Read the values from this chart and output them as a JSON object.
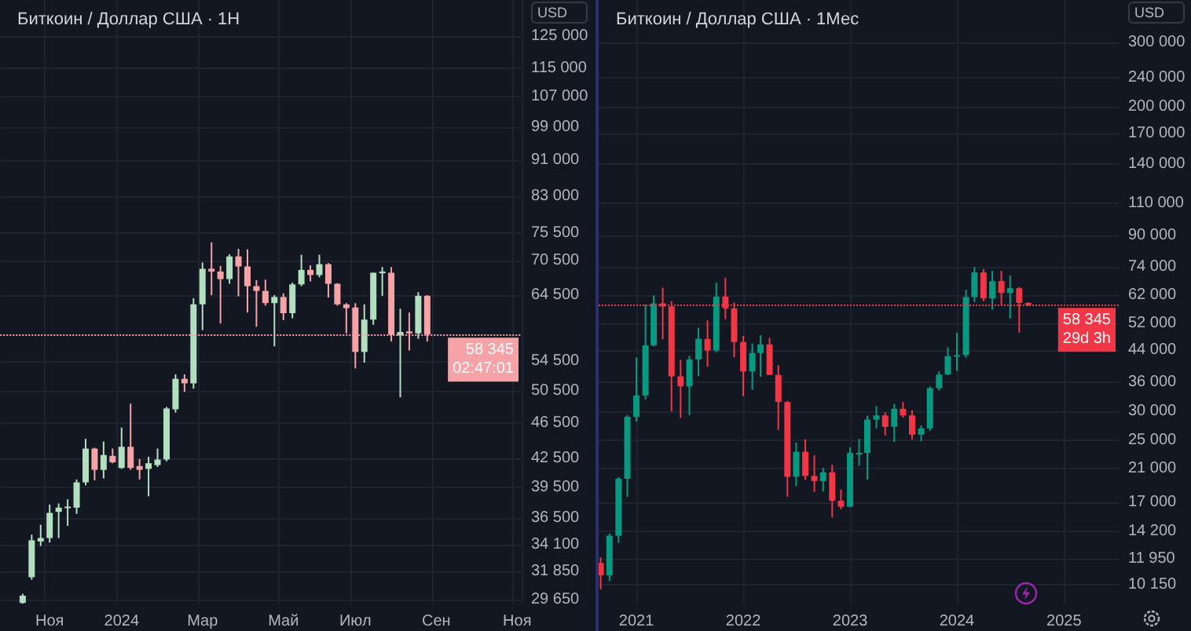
{
  "chart_data": [
    {
      "type": "candlestick",
      "title": "Биткоин / Доллар США · 1Н",
      "log": true,
      "grid": true,
      "annotations": [
        "USD"
      ],
      "categories": [
        null,
        null,
        null,
        null,
        null,
        "Ноя",
        null,
        null,
        null,
        null,
        null,
        null,
        null,
        "2024",
        null,
        null,
        null,
        null,
        null,
        null,
        null,
        null,
        "Мар",
        null,
        null,
        null,
        null,
        null,
        null,
        null,
        null,
        "Май",
        null,
        null,
        null,
        null,
        null,
        null,
        null,
        "Июл",
        null,
        null,
        null,
        null,
        null,
        null,
        null,
        null,
        "Сен",
        null,
        null,
        null,
        null,
        null,
        null,
        null,
        null,
        "Ноя"
      ],
      "ohlc": [
        null,
        null,
        [
          29400,
          30100,
          29350,
          29950
        ],
        [
          31400,
          35000,
          31200,
          34500
        ],
        [
          34400,
          35900,
          34000,
          34700
        ],
        [
          34700,
          37800,
          34300,
          37000
        ],
        [
          37100,
          37900,
          34700,
          37500
        ],
        [
          37450,
          38300,
          35800,
          37600
        ],
        [
          37500,
          40300,
          36900,
          40000
        ],
        [
          40000,
          44700,
          39700,
          43600
        ],
        [
          43600,
          43700,
          40200,
          41300
        ],
        [
          41300,
          44400,
          40400,
          42900
        ],
        [
          42800,
          43600,
          42000,
          42100
        ],
        [
          41500,
          46000,
          41400,
          43800
        ],
        [
          43800,
          48900,
          41300,
          41500
        ],
        [
          41700,
          42450,
          40300,
          41300
        ],
        [
          41400,
          42700,
          38600,
          42000
        ],
        [
          41800,
          43600,
          41600,
          42400
        ],
        [
          42400,
          48500,
          42200,
          48300
        ],
        [
          48200,
          52700,
          47800,
          52100
        ],
        [
          52100,
          52700,
          50400,
          51500
        ],
        [
          51500,
          64000,
          50800,
          63000
        ],
        [
          63000,
          70100,
          59000,
          69000
        ],
        [
          69000,
          73800,
          64500,
          68500
        ],
        [
          68500,
          69500,
          60000,
          67200
        ],
        [
          67200,
          71600,
          66400,
          71200
        ],
        [
          71200,
          72600,
          64300,
          69400
        ],
        [
          69400,
          72500,
          61700,
          66000
        ],
        [
          66000,
          67000,
          59500,
          65200
        ],
        [
          65200,
          67100,
          62800,
          63200
        ],
        [
          63200,
          64500,
          56600,
          64200
        ],
        [
          64200,
          64800,
          60500,
          61600
        ],
        [
          61600,
          66600,
          60800,
          66300
        ],
        [
          66300,
          71500,
          66000,
          68800
        ],
        [
          68800,
          69600,
          66800,
          67900
        ],
        [
          67900,
          71500,
          67500,
          69800
        ],
        [
          69800,
          70000,
          64100,
          66400
        ],
        [
          66400,
          66500,
          62800,
          63000
        ],
        [
          63000,
          63200,
          58500,
          62400
        ],
        [
          62500,
          63200,
          53500,
          55800
        ],
        [
          55800,
          63000,
          54300,
          60600
        ],
        [
          60600,
          68300,
          59800,
          68300
        ],
        [
          68200,
          69300,
          64400,
          68500
        ],
        [
          68300,
          69300,
          57300,
          58300
        ],
        [
          58200,
          62300,
          49700,
          58700
        ],
        [
          58800,
          61700,
          56000,
          58500
        ],
        [
          58500,
          65000,
          57700,
          64400
        ],
        [
          64400,
          64500,
          57300,
          58345
        ],
        null,
        null,
        null,
        null,
        null,
        null,
        null,
        null,
        null,
        null
      ],
      "colors": [
        null,
        null,
        "#b2dfbf",
        "#b2dfbf",
        "#b2dfbf",
        "#b2dfbf",
        "#b2dfbf",
        "#b2dfbf",
        "#b2dfbf",
        "#b2dfbf",
        "#f5a3a7",
        "#b2dfbf",
        "#f5a3a7",
        "#b2dfbf",
        "#f5a3a7",
        "#f5a3a7",
        "#b2dfbf",
        "#b2dfbf",
        "#b2dfbf",
        "#b2dfbf",
        "#f5a3a7",
        "#b2dfbf",
        "#b2dfbf",
        "#f5a3a7",
        "#f5a3a7",
        "#b2dfbf",
        "#f5a3a7",
        "#f5a3a7",
        "#f5a3a7",
        "#f5a3a7",
        "#b2dfbf",
        "#f5a3a7",
        "#b2dfbf",
        "#b2dfbf",
        "#f5a3a7",
        "#b2dfbf",
        "#f5a3a7",
        "#f5a3a7",
        "#f5a3a7",
        "#f5a3a7",
        "#b2dfbf",
        "#b2dfbf",
        "#b2dfbf",
        "#f5a3a7",
        "#b2dfbf",
        "#f5a3a7",
        "#b2dfbf",
        "#f5a3a7",
        null,
        null,
        null,
        null,
        null,
        null,
        null,
        null,
        null,
        null
      ],
      "ylim": [
        29300,
        137000
      ],
      "yticks": [
        {
          "value": 125000,
          "label": "125 000"
        },
        {
          "value": 115000,
          "label": "115 000"
        },
        {
          "value": 107000,
          "label": "107 000"
        },
        {
          "value": 99000,
          "label": "99 000"
        },
        {
          "value": 91000,
          "label": "91 000"
        },
        {
          "value": 83000,
          "label": "83 000"
        },
        {
          "value": 75500,
          "label": "75 500"
        },
        {
          "value": 70500,
          "label": "70 500"
        },
        {
          "value": 64500,
          "label": "64 500"
        },
        {
          "value": 54500,
          "label": "54 500"
        },
        {
          "value": 50500,
          "label": "50 500"
        },
        {
          "value": 46500,
          "label": "46 500"
        },
        {
          "value": 42500,
          "label": "42 500"
        },
        {
          "value": 39500,
          "label": "39 500"
        },
        {
          "value": 36500,
          "label": "36 500"
        },
        {
          "value": 34100,
          "label": "34 100"
        },
        {
          "value": 31850,
          "label": "31 850"
        },
        {
          "value": 29650,
          "label": "29 650"
        }
      ],
      "ref_lines": [
        {
          "axis": "y",
          "value": 58345,
          "label": "58 345\n02:47:01",
          "color": "#f5a3a7",
          "line_style": "dotted"
        }
      ]
    },
    {
      "type": "candlestick",
      "title": "Биткоин / Доллар США · 1Мес",
      "log": true,
      "grid": true,
      "annotations": [
        "USD"
      ],
      "x": [
        "2020-09",
        "2020-10",
        "2020-11",
        "2020-12",
        "2021-01",
        "2021-02",
        "2021-03",
        "2021-04",
        "2021-05",
        "2021-06",
        "2021-07",
        "2021-08",
        "2021-09",
        "2021-10",
        "2021-11",
        "2021-12",
        "2022-01",
        "2022-02",
        "2022-03",
        "2022-04",
        "2022-05",
        "2022-06",
        "2022-07",
        "2022-08",
        "2022-09",
        "2022-10",
        "2022-11",
        "2022-12",
        "2023-01",
        "2023-02",
        "2023-03",
        "2023-04",
        "2023-05",
        "2023-06",
        "2023-07",
        "2023-08",
        "2023-09",
        "2023-10",
        "2023-11",
        "2023-12",
        "2024-01",
        "2024-02",
        "2024-03",
        "2024-04",
        "2024-05",
        "2024-06",
        "2024-07",
        "2024-08",
        "2024-09"
      ],
      "ohlc": [
        [
          11650,
          12070,
          9880,
          10780
        ],
        [
          10780,
          14000,
          10400,
          13800
        ],
        [
          13800,
          19900,
          13200,
          19700
        ],
        [
          19700,
          29300,
          17600,
          28990
        ],
        [
          28990,
          41950,
          28130,
          33110
        ],
        [
          33110,
          58350,
          32300,
          45240
        ],
        [
          45240,
          61780,
          45000,
          58800
        ],
        [
          58800,
          64900,
          47000,
          57700
        ],
        [
          57700,
          59600,
          30000,
          37300
        ],
        [
          37300,
          41300,
          28800,
          35040
        ],
        [
          35040,
          42400,
          29300,
          41460
        ],
        [
          41460,
          50500,
          37300,
          47100
        ],
        [
          47100,
          52900,
          39600,
          43820
        ],
        [
          43820,
          67000,
          43300,
          61300
        ],
        [
          61300,
          69000,
          53300,
          57000
        ],
        [
          57000,
          59100,
          42000,
          46200
        ],
        [
          46200,
          47990,
          32950,
          38480
        ],
        [
          38480,
          45800,
          34300,
          43160
        ],
        [
          43160,
          48200,
          37200,
          45510
        ],
        [
          45510,
          47440,
          37600,
          37640
        ],
        [
          37640,
          40000,
          26700,
          31790
        ],
        [
          31790,
          31980,
          17600,
          19940
        ],
        [
          19940,
          24670,
          18800,
          23300
        ],
        [
          23300,
          25200,
          19550,
          20050
        ],
        [
          20050,
          22790,
          18150,
          19420
        ],
        [
          19420,
          21090,
          18190,
          20490
        ],
        [
          20490,
          21480,
          15480,
          17170
        ],
        [
          17170,
          18400,
          16300,
          16540
        ],
        [
          16540,
          23950,
          16500,
          23130
        ],
        [
          23130,
          25250,
          21350,
          23150
        ],
        [
          23150,
          29190,
          19600,
          28470
        ],
        [
          28470,
          31000,
          26950,
          29240
        ],
        [
          29240,
          29820,
          25800,
          27220
        ],
        [
          27220,
          31430,
          24800,
          30470
        ],
        [
          30470,
          31800,
          28860,
          29230
        ],
        [
          29230,
          30180,
          25160,
          25930
        ],
        [
          25930,
          27480,
          24900,
          26970
        ],
        [
          26970,
          35000,
          26550,
          34650
        ],
        [
          34650,
          38450,
          34100,
          37720
        ],
        [
          37720,
          44700,
          37600,
          42280
        ],
        [
          42280,
          48970,
          38550,
          42580
        ],
        [
          42580,
          64000,
          41880,
          61180
        ],
        [
          61180,
          73800,
          59300,
          71330
        ],
        [
          71330,
          72800,
          59600,
          60640
        ],
        [
          60640,
          71980,
          56550,
          67530
        ],
        [
          67530,
          72000,
          58400,
          62750
        ],
        [
          62750,
          70000,
          53500,
          64630
        ],
        [
          64630,
          65100,
          49000,
          58970
        ],
        [
          58970,
          59200,
          57800,
          58345
        ]
      ],
      "colors": [
        "#f23645",
        "#089981",
        "#089981",
        "#089981",
        "#089981",
        "#089981",
        "#089981",
        "#f23645",
        "#f23645",
        "#f23645",
        "#089981",
        "#089981",
        "#f23645",
        "#089981",
        "#f23645",
        "#f23645",
        "#f23645",
        "#089981",
        "#089981",
        "#f23645",
        "#f23645",
        "#f23645",
        "#089981",
        "#f23645",
        "#f23645",
        "#089981",
        "#f23645",
        "#f23645",
        "#089981",
        "#089981",
        "#089981",
        "#089981",
        "#f23645",
        "#089981",
        "#f23645",
        "#f23645",
        "#089981",
        "#089981",
        "#089981",
        "#089981",
        "#089981",
        "#089981",
        "#089981",
        "#f23645",
        "#089981",
        "#f23645",
        "#089981",
        "#f23645",
        "#f23645"
      ],
      "xlim": [
        "2020-08-25",
        "2025-07-07"
      ],
      "xticks": [
        {
          "value": "2021-01-01",
          "label": "2021"
        },
        {
          "value": "2022-01-01",
          "label": "2022"
        },
        {
          "value": "2023-01-01",
          "label": "2023"
        },
        {
          "value": "2024-01-01",
          "label": "2024"
        },
        {
          "value": "2025-01-01",
          "label": "2025"
        }
      ],
      "ylim": [
        9000,
        390000
      ],
      "yticks": [
        {
          "value": 300000,
          "label": "300 000"
        },
        {
          "value": 240000,
          "label": "240 000"
        },
        {
          "value": 200000,
          "label": "200 000"
        },
        {
          "value": 170000,
          "label": "170 000"
        },
        {
          "value": 140000,
          "label": "140 000"
        },
        {
          "value": 110000,
          "label": "110 000"
        },
        {
          "value": 90000,
          "label": "90 000"
        },
        {
          "value": 74000,
          "label": "74 000"
        },
        {
          "value": 62000,
          "label": "62 000"
        },
        {
          "value": 52000,
          "label": "52 000"
        },
        {
          "value": 44000,
          "label": "44 000"
        },
        {
          "value": 36000,
          "label": "36 000"
        },
        {
          "value": 30000,
          "label": "30 000"
        },
        {
          "value": 25000,
          "label": "25 000"
        },
        {
          "value": 21000,
          "label": "21 000"
        },
        {
          "value": 17000,
          "label": "17 000"
        },
        {
          "value": 14200,
          "label": "14 200"
        },
        {
          "value": 11950,
          "label": "11 950"
        },
        {
          "value": 10150,
          "label": "10 150"
        }
      ],
      "ref_lines": [
        {
          "axis": "y",
          "value": 58345,
          "label": "58 345\n29d 3h",
          "color": "#f23645",
          "line_style": "dotted"
        }
      ]
    }
  ]
}
